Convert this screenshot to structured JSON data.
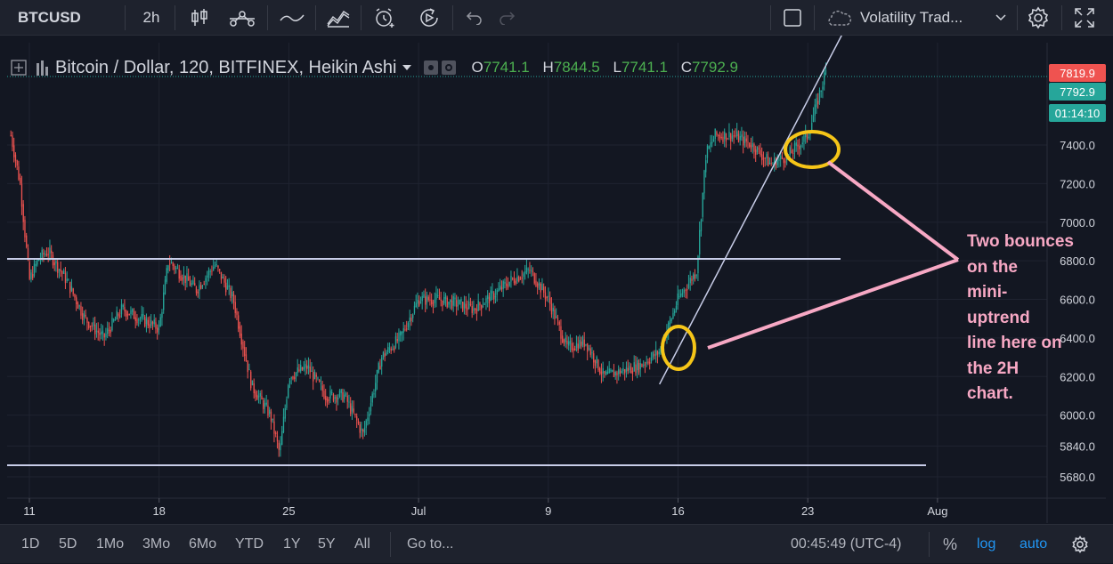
{
  "toolbar": {
    "symbol": "BTCUSD",
    "interval": "2h",
    "template_name": "Volatility Trad..."
  },
  "legend": {
    "title": "Bitcoin / Dollar, 120, BITFINEX, Heikin Ashi",
    "open_label": "O",
    "open": "7741.1",
    "high_label": "H",
    "high": "7844.5",
    "low_label": "L",
    "low": "7741.1",
    "close_label": "C",
    "close": "7792.9"
  },
  "price_axis": {
    "ticks": [
      "7400.0",
      "7200.0",
      "7000.0",
      "6800.0",
      "6600.0",
      "6400.0",
      "6200.0",
      "6000.0",
      "5840.0",
      "5680.0"
    ],
    "tags": {
      "high": "7819.9",
      "last": "7792.9",
      "countdown": "01:14:10"
    },
    "colors": {
      "high_tag": "#ef5350",
      "last_tag": "#26a69a",
      "up": "#26a69a",
      "down": "#ef5350"
    }
  },
  "time_axis": {
    "ticks": [
      "11",
      "18",
      "25",
      "Jul",
      "9",
      "16",
      "23",
      "Aug"
    ]
  },
  "bottombar": {
    "ranges": [
      "1D",
      "5D",
      "1Mo",
      "3Mo",
      "6Mo",
      "YTD",
      "1Y",
      "5Y",
      "All"
    ],
    "goto": "Go to...",
    "time": "00:45:49 (UTC-4)",
    "percent": "%",
    "log": "log",
    "auto": "auto"
  },
  "annotation": {
    "lines": [
      "Two bounces",
      "on the",
      "mini-",
      "uptrend",
      "line here on",
      "the 2H",
      "chart."
    ],
    "color": "#f7a8c4"
  },
  "chart_data": {
    "type": "candlestick",
    "style": "Heikin Ashi",
    "symbol": "BTCUSD",
    "interval": "120",
    "exchange": "BITFINEX",
    "x_ticks": [
      "11",
      "18",
      "25",
      "Jul",
      "9",
      "16",
      "23",
      "Aug"
    ],
    "ylim": [
      5600,
      7900
    ],
    "horizontal_lines": [
      6810,
      5740
    ],
    "trendline": {
      "from": {
        "x": "Jul 15",
        "y": 6160
      },
      "to": {
        "x": "Jul 25",
        "y": 8000
      }
    },
    "path": [
      [
        "Jun 10",
        7450
      ],
      [
        "Jun 10.5",
        7200
      ],
      [
        "Jun 11",
        6700
      ],
      [
        "Jun 11.5",
        6810
      ],
      [
        "Jun 12",
        6850
      ],
      [
        "Jun 13",
        6700
      ],
      [
        "Jun 14",
        6500
      ],
      [
        "Jun 15",
        6400
      ],
      [
        "Jun 16",
        6550
      ],
      [
        "Jun 17",
        6500
      ],
      [
        "Jun 18",
        6450
      ],
      [
        "Jun 18.5",
        6800
      ],
      [
        "Jun 19",
        6750
      ],
      [
        "Jun 20",
        6650
      ],
      [
        "Jun 21",
        6780
      ],
      [
        "Jun 22",
        6600
      ],
      [
        "Jun 23",
        6150
      ],
      [
        "Jun 24",
        6000
      ],
      [
        "Jun 24.5",
        5800
      ],
      [
        "Jun 25",
        6200
      ],
      [
        "Jun 26",
        6250
      ],
      [
        "Jun 27",
        6100
      ],
      [
        "Jun 28",
        6100
      ],
      [
        "Jun 29",
        5900
      ],
      [
        "Jun 30",
        6300
      ],
      [
        "Jul 1",
        6400
      ],
      [
        "Jul 2",
        6600
      ],
      [
        "Jul 3",
        6600
      ],
      [
        "Jul 4",
        6580
      ],
      [
        "Jul 5",
        6550
      ],
      [
        "Jul 6",
        6620
      ],
      [
        "Jul 7",
        6700
      ],
      [
        "Jul 8",
        6750
      ],
      [
        "Jul 9",
        6600
      ],
      [
        "Jul 10",
        6350
      ],
      [
        "Jul 11",
        6380
      ],
      [
        "Jul 12",
        6200
      ],
      [
        "Jul 13",
        6230
      ],
      [
        "Jul 14",
        6260
      ],
      [
        "Jul 15",
        6330
      ],
      [
        "Jul 16",
        6600
      ],
      [
        "Jul 17",
        6750
      ],
      [
        "Jul 17.5",
        7350
      ],
      [
        "Jul 18",
        7450
      ],
      [
        "Jul 19",
        7450
      ],
      [
        "Jul 20",
        7400
      ],
      [
        "Jul 21",
        7300
      ],
      [
        "Jul 22",
        7350
      ],
      [
        "Jul 23",
        7450
      ],
      [
        "Jul 24",
        7790
      ]
    ]
  }
}
